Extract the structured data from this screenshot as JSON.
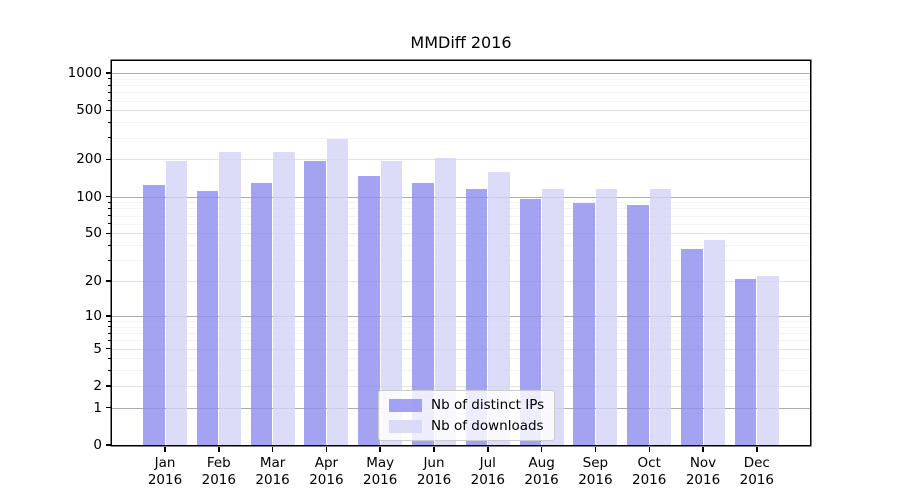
{
  "chart_data": {
    "type": "bar",
    "title": "MMDiff 2016",
    "categories": [
      "Jan",
      "Feb",
      "Mar",
      "Apr",
      "May",
      "Jun",
      "Jul",
      "Aug",
      "Sep",
      "Oct",
      "Nov",
      "Dec"
    ],
    "category_year": "2016",
    "series": [
      {
        "name": "Nb of distinct IPs",
        "color": "#8f8fef",
        "values": [
          125,
          110,
          130,
          193,
          146,
          130,
          116,
          95,
          89,
          86,
          37,
          21
        ]
      },
      {
        "name": "Nb of downloads",
        "color": "#d4d4f8",
        "values": [
          193,
          230,
          232,
          295,
          193,
          204,
          157,
          115,
          115,
          115,
          44,
          22
        ]
      }
    ],
    "xlabel": "",
    "ylabel": "",
    "yscale": "log1p",
    "y_ticks": [
      0,
      1,
      2,
      5,
      10,
      20,
      50,
      100,
      200,
      500,
      1000
    ],
    "ylim": [
      0,
      1250
    ],
    "grid": true,
    "legend_position": "lower center inside"
  }
}
